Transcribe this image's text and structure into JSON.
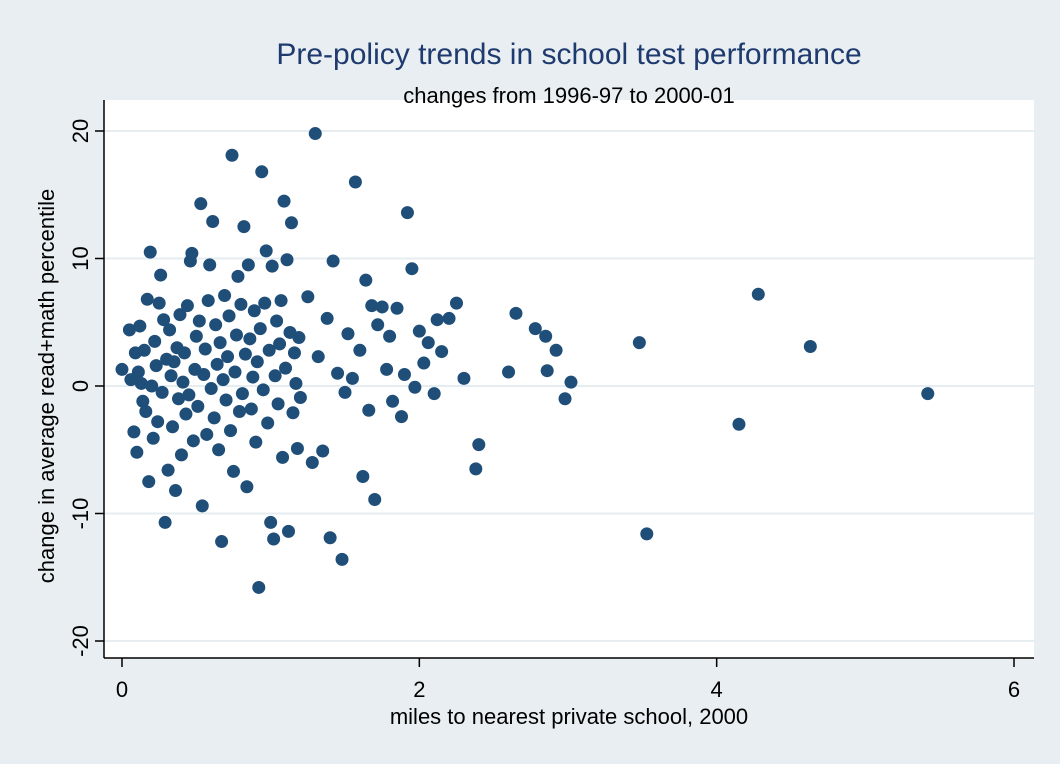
{
  "chart_data": {
    "type": "scatter",
    "title": "Pre-policy trends in school test performance",
    "subtitle": "changes from 1996-97 to 2000-01",
    "xlabel": "miles to nearest private school, 2000",
    "ylabel": "change in average read+math percentile",
    "xlim": [
      0,
      6
    ],
    "ylim": [
      -20,
      20
    ],
    "xticks": [
      "0",
      "2",
      "4",
      "6"
    ],
    "yticks": [
      "-20",
      "-10",
      "0",
      "10",
      "20"
    ],
    "grid": true,
    "colors": {
      "background": "#e8eef1",
      "plot_area": "#ffffff",
      "marker": "#1f4e79",
      "title": "#1e3a6e",
      "grid": "#e6edf1"
    },
    "points": [
      [
        0.0,
        1.3
      ],
      [
        0.05,
        4.4
      ],
      [
        0.06,
        0.5
      ],
      [
        0.08,
        -3.6
      ],
      [
        0.09,
        2.6
      ],
      [
        0.1,
        -5.2
      ],
      [
        0.11,
        1.1
      ],
      [
        0.12,
        4.7
      ],
      [
        0.13,
        0.2
      ],
      [
        0.14,
        -1.2
      ],
      [
        0.15,
        2.8
      ],
      [
        0.16,
        -2.0
      ],
      [
        0.17,
        6.8
      ],
      [
        0.18,
        -7.5
      ],
      [
        0.19,
        10.5
      ],
      [
        0.2,
        0.0
      ],
      [
        0.21,
        -4.1
      ],
      [
        0.22,
        3.5
      ],
      [
        0.23,
        1.6
      ],
      [
        0.24,
        -2.8
      ],
      [
        0.25,
        6.5
      ],
      [
        0.26,
        8.7
      ],
      [
        0.27,
        -0.5
      ],
      [
        0.28,
        5.2
      ],
      [
        0.29,
        -10.7
      ],
      [
        0.3,
        2.1
      ],
      [
        0.31,
        -6.6
      ],
      [
        0.32,
        4.4
      ],
      [
        0.33,
        0.8
      ],
      [
        0.34,
        -3.2
      ],
      [
        0.35,
        1.9
      ],
      [
        0.36,
        -8.2
      ],
      [
        0.37,
        3.0
      ],
      [
        0.38,
        -1.0
      ],
      [
        0.39,
        5.6
      ],
      [
        0.4,
        -5.4
      ],
      [
        0.41,
        0.3
      ],
      [
        0.42,
        2.6
      ],
      [
        0.43,
        -2.2
      ],
      [
        0.44,
        6.3
      ],
      [
        0.45,
        -0.7
      ],
      [
        0.46,
        9.8
      ],
      [
        0.47,
        10.4
      ],
      [
        0.48,
        -4.3
      ],
      [
        0.49,
        1.3
      ],
      [
        0.5,
        3.9
      ],
      [
        0.51,
        -1.6
      ],
      [
        0.52,
        5.1
      ],
      [
        0.53,
        14.3
      ],
      [
        0.54,
        -9.4
      ],
      [
        0.55,
        0.9
      ],
      [
        0.56,
        2.9
      ],
      [
        0.57,
        -3.8
      ],
      [
        0.58,
        6.7
      ],
      [
        0.59,
        9.5
      ],
      [
        0.6,
        -0.2
      ],
      [
        0.61,
        12.9
      ],
      [
        0.62,
        -2.5
      ],
      [
        0.63,
        4.8
      ],
      [
        0.64,
        1.7
      ],
      [
        0.65,
        -5.0
      ],
      [
        0.66,
        3.4
      ],
      [
        0.67,
        -12.2
      ],
      [
        0.68,
        0.5
      ],
      [
        0.69,
        7.1
      ],
      [
        0.7,
        -1.1
      ],
      [
        0.71,
        2.3
      ],
      [
        0.72,
        5.5
      ],
      [
        0.73,
        -3.5
      ],
      [
        0.74,
        18.1
      ],
      [
        0.75,
        -6.7
      ],
      [
        0.76,
        1.1
      ],
      [
        0.77,
        4.0
      ],
      [
        0.78,
        8.6
      ],
      [
        0.79,
        -2.0
      ],
      [
        0.8,
        6.4
      ],
      [
        0.81,
        -0.6
      ],
      [
        0.82,
        12.5
      ],
      [
        0.83,
        2.5
      ],
      [
        0.84,
        -7.9
      ],
      [
        0.85,
        9.5
      ],
      [
        0.86,
        3.7
      ],
      [
        0.87,
        -1.8
      ],
      [
        0.88,
        0.7
      ],
      [
        0.89,
        5.9
      ],
      [
        0.9,
        -4.4
      ],
      [
        0.91,
        1.9
      ],
      [
        0.92,
        -15.8
      ],
      [
        0.93,
        4.5
      ],
      [
        0.94,
        16.8
      ],
      [
        0.95,
        -0.3
      ],
      [
        0.96,
        6.5
      ],
      [
        0.97,
        10.6
      ],
      [
        0.98,
        -2.9
      ],
      [
        0.99,
        2.8
      ],
      [
        1.0,
        -10.7
      ],
      [
        1.01,
        9.4
      ],
      [
        1.02,
        -12.0
      ],
      [
        1.03,
        0.8
      ],
      [
        1.04,
        5.1
      ],
      [
        1.05,
        -1.4
      ],
      [
        1.06,
        3.3
      ],
      [
        1.07,
        6.7
      ],
      [
        1.08,
        -5.6
      ],
      [
        1.09,
        14.5
      ],
      [
        1.1,
        1.4
      ],
      [
        1.11,
        9.9
      ],
      [
        1.12,
        -11.4
      ],
      [
        1.13,
        4.2
      ],
      [
        1.14,
        12.8
      ],
      [
        1.15,
        -2.1
      ],
      [
        1.16,
        2.6
      ],
      [
        1.17,
        0.2
      ],
      [
        1.18,
        -4.9
      ],
      [
        1.19,
        3.8
      ],
      [
        1.2,
        -0.9
      ],
      [
        1.25,
        7.0
      ],
      [
        1.28,
        -6.0
      ],
      [
        1.3,
        19.8
      ],
      [
        1.32,
        2.3
      ],
      [
        1.35,
        -5.1
      ],
      [
        1.38,
        5.3
      ],
      [
        1.4,
        -11.9
      ],
      [
        1.42,
        9.8
      ],
      [
        1.45,
        1.0
      ],
      [
        1.48,
        -13.6
      ],
      [
        1.5,
        -0.5
      ],
      [
        1.52,
        4.1
      ],
      [
        1.55,
        0.6
      ],
      [
        1.57,
        16.0
      ],
      [
        1.6,
        2.8
      ],
      [
        1.62,
        -7.1
      ],
      [
        1.64,
        8.3
      ],
      [
        1.66,
        -1.9
      ],
      [
        1.68,
        6.3
      ],
      [
        1.7,
        -8.9
      ],
      [
        1.72,
        4.8
      ],
      [
        1.75,
        6.2
      ],
      [
        1.78,
        1.3
      ],
      [
        1.8,
        3.9
      ],
      [
        1.82,
        -1.2
      ],
      [
        1.85,
        6.1
      ],
      [
        1.88,
        -2.4
      ],
      [
        1.9,
        0.9
      ],
      [
        1.92,
        13.6
      ],
      [
        1.95,
        9.2
      ],
      [
        1.97,
        -0.1
      ],
      [
        2.0,
        4.3
      ],
      [
        2.03,
        1.8
      ],
      [
        2.06,
        3.4
      ],
      [
        2.1,
        -0.6
      ],
      [
        2.12,
        5.2
      ],
      [
        2.15,
        2.7
      ],
      [
        2.2,
        5.3
      ],
      [
        2.25,
        6.5
      ],
      [
        2.3,
        0.6
      ],
      [
        2.38,
        -6.5
      ],
      [
        2.4,
        -4.6
      ],
      [
        2.6,
        1.1
      ],
      [
        2.65,
        5.7
      ],
      [
        2.78,
        4.5
      ],
      [
        2.85,
        3.9
      ],
      [
        2.86,
        1.2
      ],
      [
        2.92,
        2.8
      ],
      [
        2.98,
        -1.0
      ],
      [
        3.02,
        0.3
      ],
      [
        3.48,
        3.4
      ],
      [
        3.53,
        -11.6
      ],
      [
        4.15,
        -3.0
      ],
      [
        4.28,
        7.2
      ],
      [
        4.63,
        3.1
      ],
      [
        5.42,
        -0.6
      ]
    ]
  }
}
